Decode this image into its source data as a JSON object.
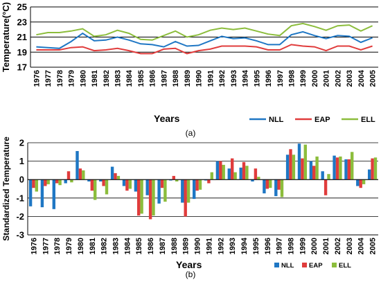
{
  "years": [
    "1976",
    "1977",
    "1978",
    "1979",
    "1980",
    "1981",
    "1982",
    "1983",
    "1984",
    "1985",
    "1986",
    "1987",
    "1988",
    "1989",
    "1990",
    "1991",
    "1992",
    "1993",
    "1994",
    "1995",
    "1996",
    "1997",
    "1998",
    "1999",
    "2000",
    "2001",
    "2002",
    "2003",
    "2004",
    "2005"
  ],
  "chart_data": [
    {
      "type": "line",
      "panel_label": "(a)",
      "xlabel": "Years",
      "ylabel": "Temperature(°C)",
      "ylim": [
        17,
        25
      ],
      "yticks": [
        17,
        19,
        21,
        23,
        25
      ],
      "grid": "horizontal",
      "legend": "bottom-right",
      "series": [
        {
          "name": "NLL",
          "color": "#1f77c4",
          "values": [
            19.7,
            19.6,
            19.5,
            20.4,
            21.5,
            20.5,
            20.6,
            21.0,
            20.6,
            20.1,
            20.0,
            19.7,
            20.4,
            19.8,
            19.9,
            20.5,
            21.1,
            20.8,
            20.9,
            20.5,
            20.0,
            20.0,
            21.3,
            21.7,
            21.2,
            20.8,
            21.2,
            21.1,
            20.3,
            20.9
          ]
        },
        {
          "name": "EAP",
          "color": "#e03c3c",
          "values": [
            19.3,
            19.3,
            19.3,
            19.6,
            19.7,
            19.2,
            19.3,
            19.5,
            19.2,
            18.8,
            18.8,
            19.4,
            19.5,
            18.8,
            19.2,
            19.4,
            19.8,
            19.8,
            19.8,
            19.7,
            19.3,
            19.3,
            20.0,
            19.8,
            19.7,
            19.2,
            19.8,
            19.8,
            19.3,
            19.8
          ]
        },
        {
          "name": "ELL",
          "color": "#8cbd3c",
          "values": [
            21.3,
            21.6,
            21.6,
            21.8,
            22.1,
            21.1,
            21.3,
            21.9,
            21.5,
            20.7,
            20.6,
            21.2,
            21.8,
            21.0,
            21.3,
            21.9,
            22.2,
            22.0,
            22.2,
            21.8,
            21.4,
            21.2,
            22.5,
            22.8,
            22.4,
            21.9,
            22.5,
            22.6,
            21.8,
            22.5
          ]
        }
      ]
    },
    {
      "type": "bar",
      "panel_label": "(b)",
      "xlabel": "Years",
      "ylabel": "Standardized Temperature",
      "ylim": [
        -3,
        2
      ],
      "yticks": [
        -3,
        -2,
        -1,
        0,
        1,
        2
      ],
      "grid": "horizontal",
      "legend": "bottom-right",
      "series": [
        {
          "name": "NLL",
          "color": "#1f77c4",
          "values": [
            -1.45,
            -1.5,
            -1.6,
            -0.2,
            1.55,
            -0.1,
            -0.1,
            0.7,
            -0.35,
            -0.65,
            -0.85,
            -1.3,
            -0.05,
            -1.25,
            -1.05,
            -0.05,
            1.0,
            0.6,
            0.65,
            -0.1,
            -0.75,
            -0.9,
            1.35,
            1.95,
            1.0,
            0.45,
            1.3,
            1.1,
            -0.35,
            0.55
          ]
        },
        {
          "name": "EAP",
          "color": "#e03c3c",
          "values": [
            -0.45,
            -0.35,
            -0.2,
            0.45,
            0.6,
            -0.6,
            -0.35,
            0.35,
            -0.6,
            -1.95,
            -2.15,
            -0.45,
            0.2,
            -2.0,
            -0.6,
            -0.2,
            1.0,
            1.15,
            0.95,
            0.6,
            -0.5,
            -0.55,
            1.65,
            1.15,
            0.75,
            -0.85,
            1.2,
            1.1,
            -0.45,
            1.15
          ]
        },
        {
          "name": "ELL",
          "color": "#8cbd3c",
          "values": [
            -0.65,
            -0.25,
            -0.3,
            -0.15,
            0.5,
            -1.1,
            -0.8,
            0.2,
            -0.5,
            -1.85,
            -1.95,
            -1.2,
            -0.1,
            -1.25,
            -0.55,
            0.4,
            0.8,
            0.4,
            0.75,
            0.15,
            -0.45,
            -0.95,
            1.35,
            1.9,
            1.25,
            0.3,
            1.25,
            1.5,
            -0.25,
            1.2
          ]
        }
      ]
    }
  ]
}
